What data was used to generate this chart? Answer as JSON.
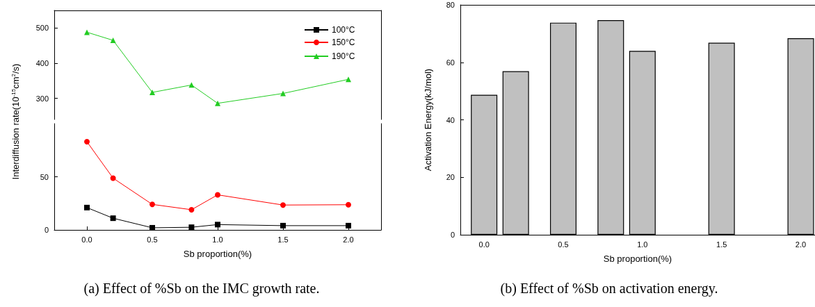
{
  "chart_data": [
    {
      "type": "line",
      "x": [
        0,
        0.2,
        0.5,
        0.8,
        1.0,
        1.5,
        2.0
      ],
      "series": [
        {
          "name": "190°C",
          "color": "#22cc22",
          "marker": "triangle",
          "values": [
            488,
            465,
            317,
            338,
            286,
            314,
            354
          ]
        }
      ],
      "xlim": [
        -0.25,
        2.25
      ],
      "ylim": [
        240,
        550
      ],
      "yticks": [
        300,
        400,
        500
      ],
      "tick_labels": "y",
      "legend": "top right"
    },
    {
      "type": "line",
      "title": "(a) Effect of %Sb on the IMC growth rate.",
      "xlabel": "Sb proportion(%)",
      "ylabel": "Interdiffusion rate(10$^{-15}$cm$^{2}$/s)",
      "x": [
        0,
        0.2,
        0.5,
        0.8,
        1.0,
        1.5,
        2.0
      ],
      "series": [
        {
          "name": "100°C",
          "color": "#000000",
          "marker": "square",
          "values": [
            21,
            11,
            2,
            2.5,
            5,
            4,
            4
          ]
        },
        {
          "name": "150°C",
          "color": "#ff0000",
          "marker": "circle",
          "values": [
            83,
            48.7,
            24,
            19,
            33,
            23.4,
            23.7
          ]
        }
      ],
      "xlim": [
        -0.25,
        2.25
      ],
      "xticks": [
        {
          "value": 0,
          "label": "0.0"
        },
        {
          "value": 0.5,
          "label": "0.5"
        },
        {
          "value": 1,
          "label": "1.0"
        },
        {
          "value": 1.5,
          "label": "1.5"
        },
        {
          "value": 2,
          "label": "2.0"
        }
      ],
      "ylim": [
        0,
        100
      ],
      "yticks": [
        0,
        50
      ],
      "legend": "top right"
    },
    {
      "type": "bar",
      "title": "(b) Effect of %Sb on activation energy.",
      "xlabel": "Sb proportion(%)",
      "ylabel": "Activation Energy(kJ/mol)",
      "x": [
        0,
        0.2,
        0.5,
        0.8,
        1.0,
        1.5,
        2.0
      ],
      "values": [
        48.7,
        56.9,
        73.8,
        74.7,
        64,
        66.8,
        68.4
      ],
      "color": "#c0c0c0",
      "xlim": [
        -0.15,
        2.09
      ],
      "xticks": [
        {
          "value": 0,
          "label": "0.0"
        },
        {
          "value": 0.5,
          "label": "0.5"
        },
        {
          "value": 1,
          "label": "1.0"
        },
        {
          "value": 1.5,
          "label": "1.5"
        },
        {
          "value": 2,
          "label": "2.0"
        }
      ],
      "ylim": [
        0,
        80
      ],
      "yticks": [
        0,
        20,
        40,
        60,
        80
      ]
    }
  ]
}
